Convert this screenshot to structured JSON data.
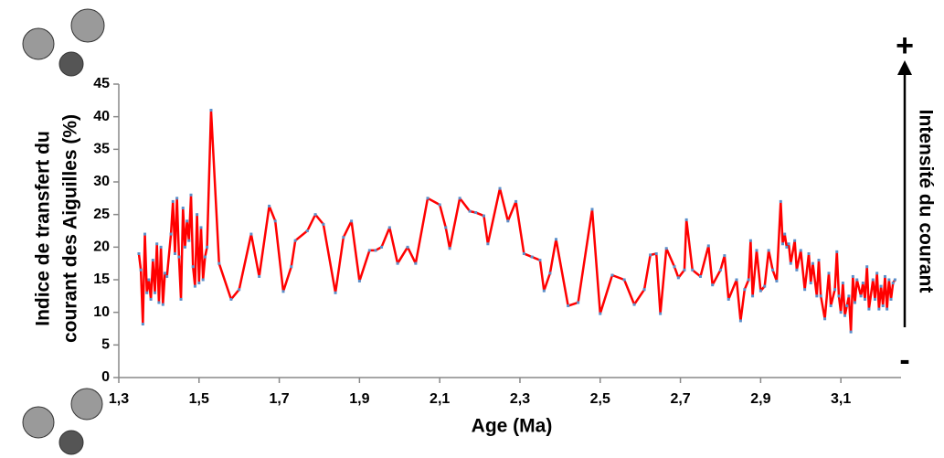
{
  "chart_data": {
    "type": "line",
    "ylabel": [
      "Indice de transfert du",
      "courant des Aiguilles (%)"
    ],
    "xlabel": "Age (Ma)",
    "annotations": [
      "+",
      "Intensité du courant",
      "-"
    ],
    "color": "#ff0000",
    "marker_color": "#5b8fc9",
    "xlim": [
      1.3,
      3.25
    ],
    "xticks": [
      {
        "value": 1.3,
        "label": "1,3"
      },
      {
        "value": 1.5,
        "label": "1,5"
      },
      {
        "value": 1.7,
        "label": "1,7"
      },
      {
        "value": 1.9,
        "label": "1,9"
      },
      {
        "value": 2.1,
        "label": "2,1"
      },
      {
        "value": 2.3,
        "label": "2,3"
      },
      {
        "value": 2.5,
        "label": "2,5"
      },
      {
        "value": 2.7,
        "label": "2,7"
      },
      {
        "value": 2.9,
        "label": "2,9"
      },
      {
        "value": 3.1,
        "label": "3,1"
      }
    ],
    "ylim": [
      0,
      45
    ],
    "yticks": [
      0,
      5,
      10,
      15,
      20,
      25,
      30,
      35,
      40,
      45
    ],
    "x": [
      1.35,
      1.355,
      1.36,
      1.365,
      1.37,
      1.375,
      1.38,
      1.385,
      1.39,
      1.395,
      1.4,
      1.405,
      1.41,
      1.415,
      1.42,
      1.43,
      1.435,
      1.44,
      1.445,
      1.45,
      1.455,
      1.46,
      1.465,
      1.47,
      1.475,
      1.48,
      1.485,
      1.49,
      1.495,
      1.5,
      1.505,
      1.51,
      1.515,
      1.52,
      1.53,
      1.55,
      1.58,
      1.6,
      1.63,
      1.65,
      1.675,
      1.69,
      1.71,
      1.73,
      1.74,
      1.77,
      1.79,
      1.81,
      1.84,
      1.86,
      1.88,
      1.9,
      1.925,
      1.94,
      1.955,
      1.975,
      1.995,
      2.02,
      2.04,
      2.07,
      2.1,
      2.115,
      2.125,
      2.15,
      2.175,
      2.19,
      2.21,
      2.22,
      2.25,
      2.27,
      2.29,
      2.31,
      2.33,
      2.35,
      2.36,
      2.375,
      2.39,
      2.42,
      2.445,
      2.48,
      2.5,
      2.53,
      2.56,
      2.585,
      2.61,
      2.625,
      2.64,
      2.65,
      2.665,
      2.685,
      2.695,
      2.71,
      2.715,
      2.73,
      2.75,
      2.77,
      2.78,
      2.8,
      2.81,
      2.82,
      2.84,
      2.85,
      2.86,
      2.87,
      2.875,
      2.88,
      2.89,
      2.9,
      2.91,
      2.92,
      2.93,
      2.94,
      2.95,
      2.955,
      2.96,
      2.965,
      2.97,
      2.975,
      2.985,
      2.99,
      3.0,
      3.01,
      3.02,
      3.025,
      3.03,
      3.04,
      3.045,
      3.05,
      3.06,
      3.07,
      3.075,
      3.085,
      3.09,
      3.095,
      3.1,
      3.105,
      3.11,
      3.115,
      3.12,
      3.125,
      3.13,
      3.135,
      3.14,
      3.15,
      3.155,
      3.16,
      3.165,
      3.17,
      3.18,
      3.185,
      3.19,
      3.195,
      3.2,
      3.205,
      3.21,
      3.215,
      3.22,
      3.225,
      3.23,
      3.235
    ],
    "values": [
      19,
      16.5,
      8.2,
      22,
      13,
      15,
      12,
      18,
      13,
      20.5,
      11.5,
      20,
      11.2,
      16,
      15.5,
      22,
      27,
      19,
      27.5,
      18.5,
      12,
      26,
      20,
      24,
      21,
      28,
      17,
      14,
      25,
      14.5,
      23,
      15,
      18.5,
      20,
      41,
      17.5,
      12,
      13.5,
      22,
      15.5,
      26.3,
      24,
      13.2,
      17,
      21,
      22.5,
      25,
      23.5,
      13,
      21.5,
      24,
      14.8,
      19.5,
      19.5,
      20,
      23,
      17.5,
      20,
      17.5,
      27.5,
      26.5,
      23,
      19.8,
      27.5,
      25.5,
      25.3,
      24.8,
      20.5,
      29,
      24,
      27,
      19,
      18.5,
      18,
      13.3,
      16,
      21.2,
      11,
      11.5,
      25.8,
      9.8,
      15.7,
      15,
      11.2,
      13.5,
      18.8,
      19,
      9.8,
      19.8,
      17,
      15.3,
      16.5,
      24.2,
      16.5,
      15.5,
      20.2,
      14.2,
      16.5,
      18.7,
      12,
      15,
      8.7,
      13.5,
      15,
      21,
      12.5,
      19.5,
      13.3,
      14,
      19.5,
      16.5,
      14.8,
      27,
      20.5,
      22,
      20,
      20.5,
      17.5,
      21,
      16.5,
      19.5,
      13.5,
      19,
      14.5,
      17.5,
      12.5,
      18,
      12.5,
      9,
      16,
      11,
      13.5,
      19.3,
      12.5,
      10,
      14.5,
      9.5,
      11,
      12.5,
      7,
      15.5,
      11.5,
      15,
      12.5,
      14.5,
      12,
      17,
      10.5,
      15,
      12,
      16,
      10.5,
      14,
      11,
      15.5,
      10.5,
      15,
      12,
      14.5,
      15
    ]
  }
}
